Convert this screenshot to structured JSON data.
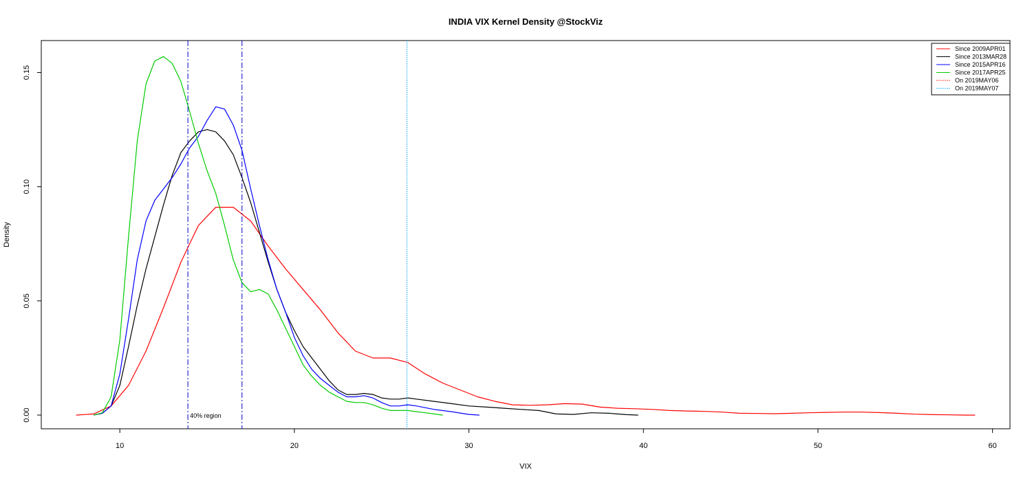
{
  "chart_data": {
    "type": "line",
    "title": "INDIA VIX Kernel Density @StockViz",
    "xlabel": "VIX",
    "ylabel": "Density",
    "xlim": [
      5.5,
      61
    ],
    "ylim": [
      -0.006,
      0.164
    ],
    "x_ticks": [
      10,
      20,
      30,
      40,
      50,
      60
    ],
    "y_ticks": [
      0.0,
      0.05,
      0.1,
      0.15
    ],
    "x_tick_labels": [
      "10",
      "20",
      "30",
      "40",
      "50",
      "60"
    ],
    "y_tick_labels": [
      "0.00",
      "0.05",
      "0.10",
      "0.15"
    ],
    "grid": false,
    "legend_position": "top-right",
    "series": [
      {
        "name": "Since 2009APR01",
        "color": "#ff0000",
        "x": [
          7.5,
          8.5,
          9.5,
          10.5,
          11.5,
          12.5,
          13.5,
          14.5,
          15.5,
          16.5,
          17.5,
          18.5,
          19.5,
          20.5,
          21.5,
          22.5,
          23.5,
          24.5,
          25.5,
          26.5,
          27.5,
          28.5,
          29.5,
          30.5,
          31.5,
          32.5,
          33.5,
          34.5,
          35.5,
          36.5,
          37.5,
          38.5,
          39.5,
          40.5,
          41.5,
          42.5,
          43.5,
          44.5,
          45.5,
          46.5,
          47.5,
          48.5,
          49.5,
          50.5,
          51.5,
          52.5,
          53.5,
          54.5,
          55.5,
          56.5,
          57.5,
          58.5,
          59.0
        ],
        "y": [
          0.0,
          0.0005,
          0.004,
          0.013,
          0.028,
          0.047,
          0.067,
          0.083,
          0.091,
          0.091,
          0.085,
          0.074,
          0.064,
          0.055,
          0.046,
          0.036,
          0.028,
          0.025,
          0.025,
          0.023,
          0.018,
          0.014,
          0.011,
          0.008,
          0.006,
          0.0045,
          0.0043,
          0.0045,
          0.005,
          0.0048,
          0.0035,
          0.003,
          0.0028,
          0.0025,
          0.002,
          0.0018,
          0.0016,
          0.0013,
          0.0008,
          0.0007,
          0.0006,
          0.0008,
          0.001,
          0.0012,
          0.0013,
          0.0013,
          0.0011,
          0.0008,
          0.0004,
          0.0002,
          0.0001,
          0.0,
          0.0
        ]
      },
      {
        "name": "Since 2013MAR28",
        "color": "#000000",
        "x": [
          8.5,
          9.0,
          9.5,
          10.0,
          10.5,
          11.0,
          11.5,
          12.0,
          12.5,
          13.0,
          13.5,
          14.0,
          14.5,
          15.0,
          15.5,
          16.0,
          16.5,
          17.0,
          17.5,
          18.0,
          18.5,
          19.0,
          19.5,
          20.0,
          20.5,
          21.0,
          21.5,
          22.0,
          22.5,
          23.0,
          23.5,
          24.0,
          24.5,
          25.0,
          25.5,
          26.0,
          26.5,
          27.0,
          28.0,
          29.0,
          30.0,
          31.0,
          32.0,
          33.0,
          34.0,
          35.0,
          36.0,
          37.0,
          38.0,
          39.0,
          39.7
        ],
        "y": [
          0.0,
          0.0008,
          0.004,
          0.013,
          0.03,
          0.048,
          0.064,
          0.078,
          0.092,
          0.105,
          0.115,
          0.12,
          0.124,
          0.125,
          0.124,
          0.12,
          0.114,
          0.104,
          0.093,
          0.08,
          0.067,
          0.055,
          0.045,
          0.037,
          0.03,
          0.025,
          0.02,
          0.015,
          0.011,
          0.009,
          0.009,
          0.0095,
          0.009,
          0.0075,
          0.007,
          0.007,
          0.0075,
          0.007,
          0.006,
          0.005,
          0.004,
          0.0035,
          0.003,
          0.0025,
          0.002,
          0.0005,
          0.0003,
          0.001,
          0.0008,
          0.0002,
          0.0
        ]
      },
      {
        "name": "Since 2015APR16",
        "color": "#0000ff",
        "x": [
          8.5,
          9.0,
          9.5,
          10.0,
          10.5,
          11.0,
          11.5,
          12.0,
          12.5,
          13.0,
          13.5,
          14.0,
          14.5,
          15.0,
          15.5,
          16.0,
          16.5,
          17.0,
          17.5,
          18.0,
          18.5,
          19.0,
          19.5,
          20.0,
          20.5,
          21.0,
          21.5,
          22.0,
          22.5,
          23.0,
          23.5,
          24.0,
          24.5,
          25.0,
          25.5,
          26.0,
          26.5,
          27.0,
          28.0,
          29.0,
          30.0,
          30.6
        ],
        "y": [
          0.0,
          0.0008,
          0.004,
          0.018,
          0.042,
          0.068,
          0.085,
          0.094,
          0.099,
          0.104,
          0.11,
          0.117,
          0.122,
          0.129,
          0.135,
          0.134,
          0.127,
          0.116,
          0.099,
          0.083,
          0.068,
          0.055,
          0.045,
          0.034,
          0.026,
          0.02,
          0.016,
          0.013,
          0.01,
          0.008,
          0.008,
          0.0085,
          0.0075,
          0.0055,
          0.004,
          0.004,
          0.0045,
          0.004,
          0.0025,
          0.0015,
          0.0003,
          0.0
        ]
      },
      {
        "name": "Since 2017APR25",
        "color": "#00cc00",
        "x": [
          8.5,
          9.0,
          9.5,
          10.0,
          10.5,
          11.0,
          11.5,
          12.0,
          12.5,
          13.0,
          13.5,
          14.0,
          14.5,
          15.0,
          15.5,
          16.0,
          16.5,
          17.0,
          17.5,
          18.0,
          18.5,
          19.0,
          19.5,
          20.0,
          20.5,
          21.0,
          21.5,
          22.0,
          22.5,
          23.0,
          23.5,
          24.0,
          24.5,
          25.0,
          25.5,
          26.0,
          26.5,
          27.0,
          27.5,
          28.0,
          28.5
        ],
        "y": [
          0.0,
          0.001,
          0.008,
          0.033,
          0.078,
          0.12,
          0.145,
          0.155,
          0.157,
          0.154,
          0.146,
          0.133,
          0.119,
          0.107,
          0.097,
          0.083,
          0.068,
          0.058,
          0.054,
          0.055,
          0.053,
          0.046,
          0.038,
          0.03,
          0.022,
          0.017,
          0.013,
          0.01,
          0.008,
          0.006,
          0.0055,
          0.0055,
          0.0045,
          0.003,
          0.002,
          0.002,
          0.002,
          0.0015,
          0.001,
          0.0005,
          0.0
        ]
      }
    ],
    "reference_lines": [
      {
        "x": 13.9,
        "color": "#0000cc",
        "style": "dashdot"
      },
      {
        "x": 17.0,
        "color": "#0000cc",
        "style": "dashdot"
      },
      {
        "x": 26.45,
        "color": "#ff0000",
        "style": "dotted"
      },
      {
        "x": 26.45,
        "color": "#00aaff",
        "style": "dotted"
      }
    ],
    "annotations": [
      {
        "text": "40% region",
        "x": 13.9,
        "y": 0.0
      }
    ],
    "legend": [
      {
        "label": "Since 2009APR01",
        "color": "#ff0000",
        "style": "solid"
      },
      {
        "label": "Since 2013MAR28",
        "color": "#000000",
        "style": "solid"
      },
      {
        "label": "Since 2015APR16",
        "color": "#0000ff",
        "style": "solid"
      },
      {
        "label": "Since 2017APR25",
        "color": "#00cc00",
        "style": "solid"
      },
      {
        "label": "On 2019MAY06",
        "color": "#ff0000",
        "style": "dotted"
      },
      {
        "label": "On 2019MAY07",
        "color": "#00aaff",
        "style": "dotted"
      }
    ]
  }
}
